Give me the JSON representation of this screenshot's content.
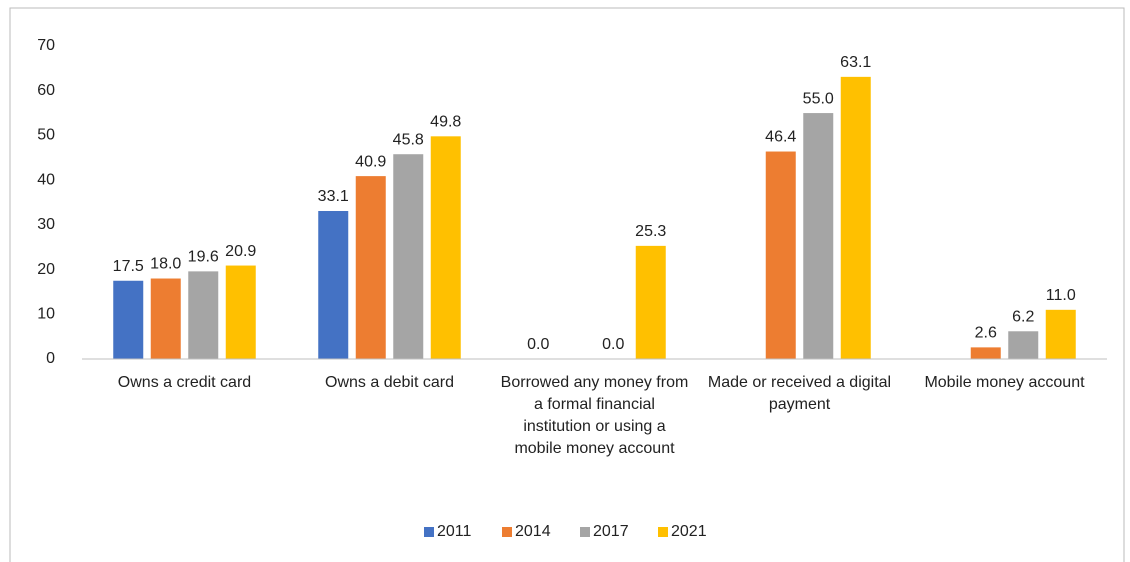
{
  "chart_data": {
    "type": "bar",
    "categories": [
      "Owns a credit card",
      "Owns a debit card",
      "Borrowed any money from a formal financial institution or using a mobile money account",
      "Made or received a digital payment",
      "Mobile money account"
    ],
    "series": [
      {
        "name": "2011",
        "color": "#4472c4",
        "values": [
          17.5,
          33.1,
          0.0,
          null,
          null
        ],
        "value_labels": [
          "17.5",
          "33.1",
          "0.0",
          null,
          null
        ]
      },
      {
        "name": "2014",
        "color": "#ed7d31",
        "values": [
          18.0,
          40.9,
          null,
          46.4,
          2.6
        ],
        "value_labels": [
          "18.0",
          "40.9",
          null,
          "46.4",
          "2.6"
        ]
      },
      {
        "name": "2017",
        "color": "#a5a5a5",
        "values": [
          19.6,
          45.8,
          0.0,
          55.0,
          6.2
        ],
        "value_labels": [
          "19.6",
          "45.8",
          "0.0",
          "55.0",
          "6.2"
        ]
      },
      {
        "name": "2021",
        "color": "#ffc000",
        "values": [
          20.9,
          49.8,
          25.3,
          63.1,
          11.0
        ],
        "value_labels": [
          "20.9",
          "49.8",
          "25.3",
          "63.1",
          "11.0"
        ]
      }
    ],
    "ylim": [
      0,
      70
    ],
    "yticks": [
      0,
      10,
      20,
      30,
      40,
      50,
      60,
      70
    ],
    "grid": false,
    "legend": "bottom"
  }
}
